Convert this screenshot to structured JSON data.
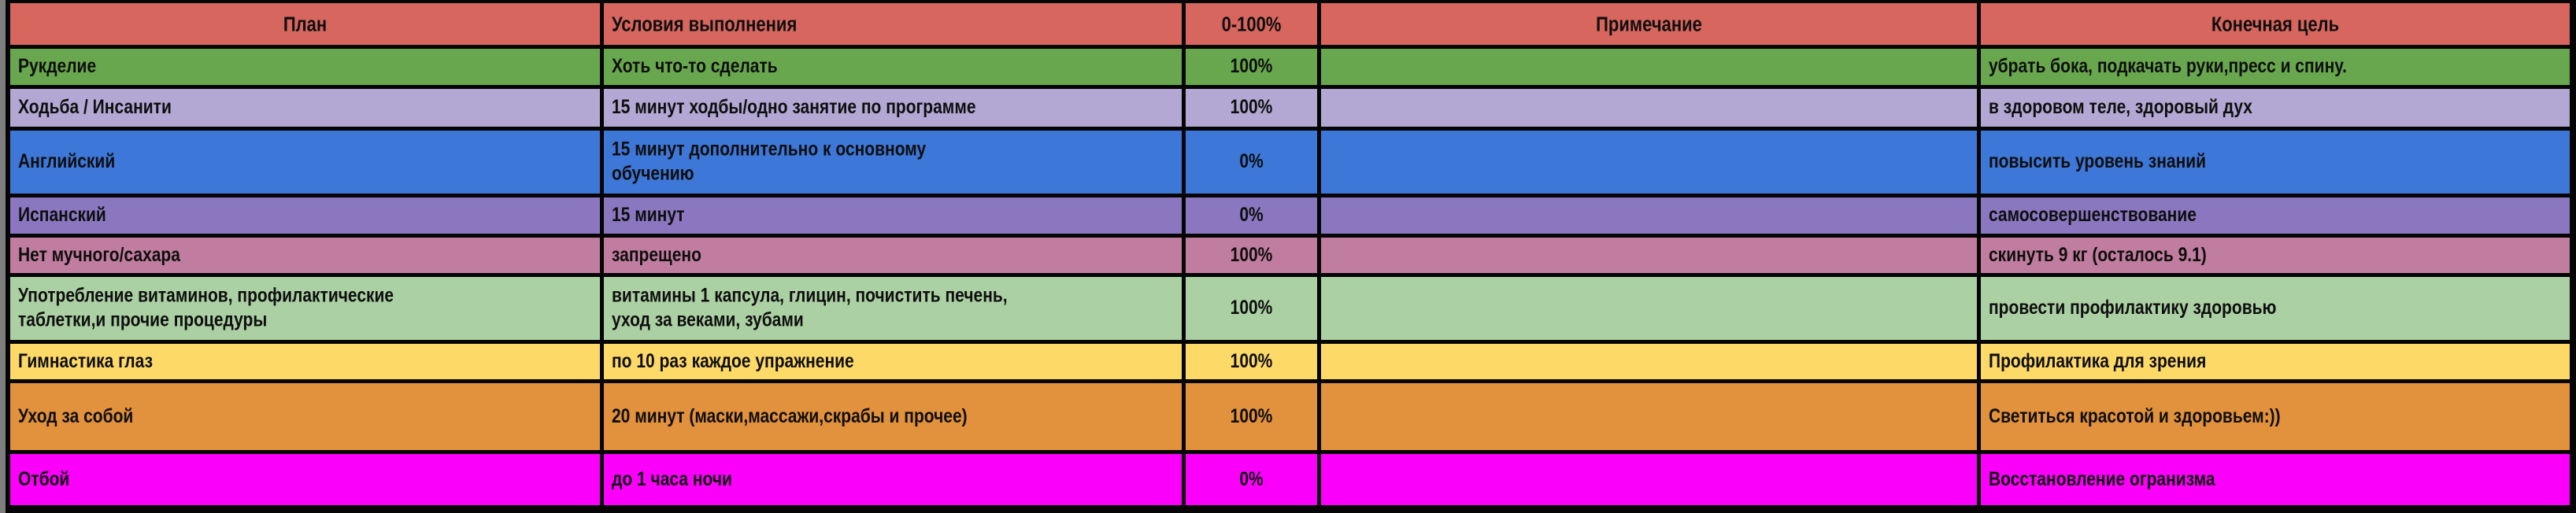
{
  "table": {
    "title": "habit-plan-tracker",
    "headers": [
      "План",
      "Условия выполнения",
      "0-100%",
      "Примечание",
      "Конечная цель"
    ],
    "header_color": "#d6665e",
    "text_color": "#0e0e0e",
    "border_color": "#050505",
    "rows": [
      {
        "plan": "Рукделие",
        "condition": "Хоть что-то сделать",
        "percent": "100%",
        "note": "",
        "goal": "убрать бока, подкачать руки,пресс и спину.",
        "color": "#68a74d"
      },
      {
        "plan": "Ходьба / Инсанити",
        "condition": "15 минут ходбы/одно занятие по программе",
        "percent": "100%",
        "note": "",
        "goal": "в здоровом теле, здоровый дух",
        "color": "#b2a8d3"
      },
      {
        "plan": "Английский",
        "condition": "15 минут дополнительно к основному\nобучению",
        "percent": "0%",
        "note": "",
        "goal": "повысить уровень знаний",
        "color": "#3d77d8"
      },
      {
        "plan": "Испанский",
        "condition": "15 минут",
        "percent": "0%",
        "note": "",
        "goal": "самосовершенствование",
        "color": "#8a77c0"
      },
      {
        "plan": "Нет мучного/сахара",
        "condition": "запрещено",
        "percent": "100%",
        "note": "",
        "goal": "скинуть 9 кг (осталось 9.1)",
        "color": "#c17d9f"
      },
      {
        "plan": "Употребление витаминов, профилактические\nтаблетки,и прочие процедуры",
        "condition": "витамины 1 капсула, глицин, почистить печень,\nуход за веками, зубами",
        "percent": "100%",
        "note": "",
        "goal": "провести профилактику здоровью",
        "color": "#abd0a3"
      },
      {
        "plan": "Гимнастика глаз",
        "condition": "по 10 раз каждое упражнение",
        "percent": "100%",
        "note": "",
        "goal": "Профилактика для зрения",
        "color": "#fdd968"
      },
      {
        "plan": "Уход за собой",
        "condition": "20 минут (маски,массажи,скрабы и прочее)",
        "percent": "100%",
        "note": "",
        "goal": "Светиться красотой и здоровьем:))",
        "color": "#e2913c"
      },
      {
        "plan": "Отбой",
        "condition": "до 1 часа ночи",
        "percent": "0%",
        "note": "",
        "goal": "Восстановление огранизма",
        "color": "#fa00fa"
      }
    ]
  }
}
